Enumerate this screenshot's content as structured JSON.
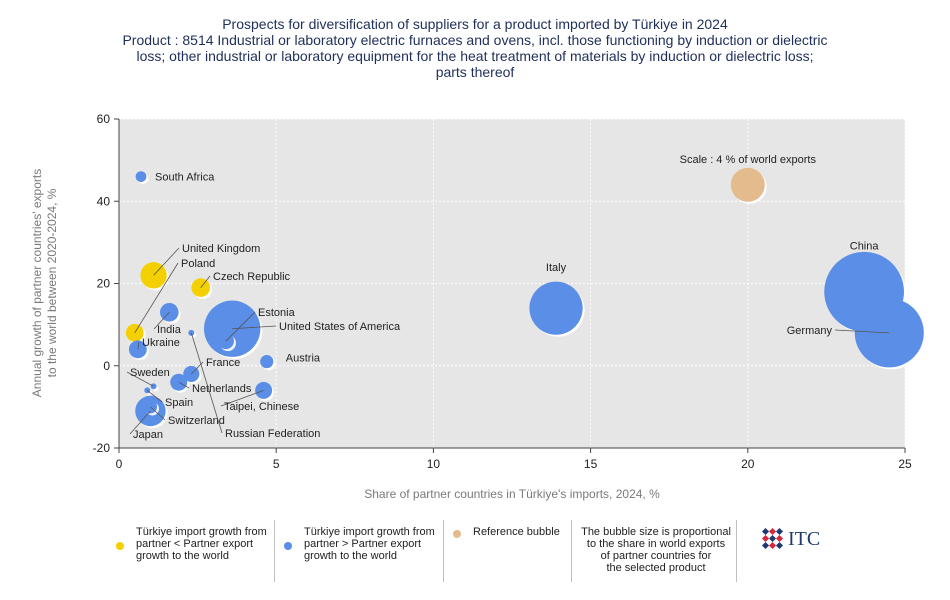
{
  "title": {
    "line1": "Prospects for diversification of suppliers for a product imported by Türkiye in 2024",
    "line2": "Product : 8514 Industrial or laboratory electric furnaces and ovens, incl. those functioning by induction or dielectric",
    "line3": "loss; other industrial or laboratory equipment for the heat treatment of materials by induction or dielectric loss;",
    "line4": "parts thereof"
  },
  "colors": {
    "yellow": "#f5d000",
    "blue": "#5b8ee6",
    "reference": "#e4bb8c",
    "plot_bg": "#e6e6e6"
  },
  "chart_data": {
    "type": "scatter",
    "xlabel": "Share of partner countries in Türkiye's imports, 2024, %",
    "ylabel_line1": "Annual growth of partner countries' exports",
    "ylabel_line2": "to the world between 2020-2024, %",
    "xlim": [
      0,
      25
    ],
    "ylim": [
      -20,
      60
    ],
    "xticks": [
      0,
      5,
      10,
      15,
      20,
      25
    ],
    "yticks": [
      -20,
      0,
      20,
      40,
      60
    ],
    "grid": true,
    "legend_position": "bottom",
    "points": [
      {
        "name": "China",
        "x": 23.7,
        "y": 18,
        "size": 22.0,
        "group": "blue"
      },
      {
        "name": "Germany",
        "x": 24.5,
        "y": 8,
        "size": 16.5,
        "group": "blue"
      },
      {
        "name": "Italy",
        "x": 13.9,
        "y": 14,
        "size": 9.8,
        "group": "blue"
      },
      {
        "name": "United States of America",
        "x": 3.6,
        "y": 9,
        "size": 11.0,
        "group": "blue"
      },
      {
        "name": "Estonia",
        "x": 3.4,
        "y": 6,
        "size": 0.9,
        "group": "blue"
      },
      {
        "name": "United Kingdom",
        "x": 1.1,
        "y": 22,
        "size": 2.4,
        "group": "yellow"
      },
      {
        "name": "Poland",
        "x": 0.5,
        "y": 8,
        "size": 1.1,
        "group": "yellow"
      },
      {
        "name": "Czech Republic",
        "x": 2.6,
        "y": 19,
        "size": 1.2,
        "group": "yellow"
      },
      {
        "name": "South Africa",
        "x": 0.7,
        "y": 46,
        "size": 0.4,
        "group": "blue"
      },
      {
        "name": "India",
        "x": 1.6,
        "y": 13,
        "size": 1.2,
        "group": "blue"
      },
      {
        "name": "Ukraine",
        "x": 0.6,
        "y": 4,
        "size": 1.1,
        "group": "blue"
      },
      {
        "name": "Austria",
        "x": 4.7,
        "y": 1,
        "size": 0.6,
        "group": "blue"
      },
      {
        "name": "France",
        "x": 2.3,
        "y": -2,
        "size": 0.9,
        "group": "blue"
      },
      {
        "name": "Netherlands",
        "x": 1.9,
        "y": -4,
        "size": 1.0,
        "group": "blue"
      },
      {
        "name": "Sweden",
        "x": 1.1,
        "y": -5,
        "size": 0.1,
        "group": "blue"
      },
      {
        "name": "Taipei, Chinese",
        "x": 4.6,
        "y": -6,
        "size": 1.0,
        "group": "blue"
      },
      {
        "name": "Spain",
        "x": 0.9,
        "y": -6,
        "size": 0.1,
        "group": "blue"
      },
      {
        "name": "Switzerland",
        "x": 1.0,
        "y": -10,
        "size": 0.6,
        "group": "blue"
      },
      {
        "name": "Japan",
        "x": 1.0,
        "y": -11,
        "size": 3.2,
        "group": "blue"
      },
      {
        "name": "Russian Federation",
        "x": 2.3,
        "y": 8,
        "size": 0.05,
        "group": "blue"
      }
    ],
    "reference": {
      "label": "Scale : 4 % of world exports",
      "x": 20.0,
      "y": 44,
      "size": 4.0
    },
    "legend": {
      "item1": [
        "Türkiye import growth from",
        "partner < Partner export",
        "growth to the world"
      ],
      "item2": [
        "Türkiye import growth from",
        "partner > Partner export",
        "growth to the world"
      ],
      "item3": "Reference bubble",
      "item4": [
        "The bubble size is proportional",
        "to the share in world exports",
        "of partner countries for",
        "the selected product"
      ]
    }
  },
  "logo_text": "ITC"
}
